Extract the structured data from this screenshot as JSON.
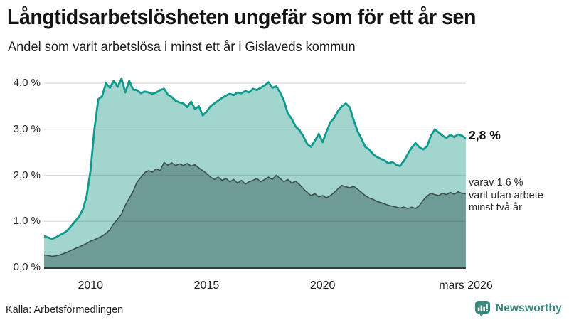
{
  "header": {
    "title": "Långtidsarbetslösheten ungefär som för ett år sen",
    "subtitle": "Andel som varit arbetslösa i minst ett år i Gislaveds kommun"
  },
  "annotations": {
    "primary": "2,8 %",
    "secondary": "varav 1,6 %\nvarit utan arbete\nminst två år"
  },
  "footer": {
    "source": "Källa: Arbetsförmedlingen",
    "brand": "Newsworthy"
  },
  "colors": {
    "series1_line": "#0f9a8e",
    "series1_fill": "#a3d5cf",
    "series2_line": "#3c4f4c",
    "series2_fill": "#6f9b96",
    "gridline": "rgba(60,60,60,0.18)",
    "baseline": "#2f3e3c",
    "brand_teal": "#3a877e"
  },
  "chart_data": {
    "type": "area",
    "title": "Långtidsarbetslösheten ungefär som för ett år sen",
    "subtitle": "Andel som varit arbetslösa i minst ett år i Gislaveds kommun",
    "grid": true,
    "legend_position": "right-annotations",
    "x_start": 2008.0,
    "x_step": 0.16667,
    "x_axis": {
      "min": 2008.0,
      "max": 2026.17,
      "ticks": [
        {
          "value": 2010,
          "label": "2010"
        },
        {
          "value": 2015,
          "label": "2015"
        },
        {
          "value": 2020,
          "label": "2020"
        },
        {
          "value": 2026.17,
          "label": "mars 2026"
        }
      ]
    },
    "y_axis": {
      "min": 0,
      "max": 4.0,
      "unit": "%",
      "gridlines": [
        1,
        2,
        3,
        4
      ],
      "ticks": [
        {
          "value": 0,
          "label": "0,0 %"
        },
        {
          "value": 1,
          "label": "1,0 %"
        },
        {
          "value": 2,
          "label": "2,0 %"
        },
        {
          "value": 3,
          "label": "3,0 %"
        },
        {
          "value": 4,
          "label": "4,0 %"
        }
      ]
    },
    "series": [
      {
        "name": "Andel som varit arbetslösa i minst ett år",
        "latest_label": "2,8 %",
        "latest_value": 2.8,
        "line_color": "#0f9a8e",
        "fill_color": "#a3d5cf",
        "values": [
          0.68,
          0.65,
          0.62,
          0.65,
          0.7,
          0.74,
          0.8,
          0.9,
          1.0,
          1.1,
          1.25,
          1.55,
          2.1,
          3.0,
          3.65,
          3.72,
          4.0,
          3.9,
          4.05,
          3.92,
          4.1,
          3.8,
          4.05,
          3.86,
          3.85,
          3.78,
          3.82,
          3.8,
          3.77,
          3.8,
          3.85,
          3.88,
          3.75,
          3.7,
          3.62,
          3.58,
          3.56,
          3.48,
          3.6,
          3.44,
          3.5,
          3.3,
          3.38,
          3.5,
          3.56,
          3.62,
          3.68,
          3.73,
          3.77,
          3.74,
          3.8,
          3.78,
          3.83,
          3.8,
          3.88,
          3.85,
          3.9,
          3.95,
          4.02,
          3.9,
          3.93,
          3.8,
          3.62,
          3.34,
          3.23,
          3.06,
          2.98,
          2.85,
          2.68,
          2.62,
          2.75,
          2.9,
          2.72,
          2.95,
          3.15,
          3.25,
          3.4,
          3.5,
          3.56,
          3.48,
          3.2,
          2.96,
          2.8,
          2.62,
          2.56,
          2.46,
          2.4,
          2.36,
          2.32,
          2.26,
          2.29,
          2.23,
          2.2,
          2.31,
          2.46,
          2.6,
          2.7,
          2.61,
          2.56,
          2.63,
          2.86,
          3.0,
          2.93,
          2.86,
          2.81,
          2.88,
          2.83,
          2.89,
          2.86,
          2.8
        ]
      },
      {
        "name": "varav varit utan arbete minst två år",
        "latest_label": "varav 1,6 %",
        "latest_value": 1.6,
        "line_color": "#3c4f4c",
        "fill_color": "#6f9b96",
        "values": [
          0.27,
          0.26,
          0.24,
          0.25,
          0.27,
          0.3,
          0.33,
          0.37,
          0.41,
          0.44,
          0.48,
          0.52,
          0.57,
          0.6,
          0.64,
          0.68,
          0.74,
          0.82,
          0.95,
          1.05,
          1.15,
          1.35,
          1.5,
          1.65,
          1.85,
          1.95,
          2.06,
          2.1,
          2.07,
          2.14,
          2.1,
          2.28,
          2.22,
          2.27,
          2.21,
          2.25,
          2.21,
          2.26,
          2.2,
          2.23,
          2.16,
          2.1,
          2.04,
          1.96,
          1.91,
          1.96,
          1.89,
          1.93,
          1.86,
          1.91,
          1.83,
          1.89,
          1.81,
          1.86,
          1.89,
          1.93,
          1.86,
          1.91,
          1.96,
          1.91,
          2.0,
          1.93,
          1.86,
          1.91,
          1.83,
          1.87,
          1.8,
          1.71,
          1.63,
          1.56,
          1.6,
          1.53,
          1.56,
          1.51,
          1.56,
          1.63,
          1.71,
          1.78,
          1.75,
          1.73,
          1.76,
          1.7,
          1.63,
          1.56,
          1.51,
          1.48,
          1.43,
          1.41,
          1.38,
          1.35,
          1.33,
          1.31,
          1.29,
          1.31,
          1.28,
          1.31,
          1.28,
          1.34,
          1.46,
          1.55,
          1.61,
          1.58,
          1.56,
          1.61,
          1.58,
          1.63,
          1.59,
          1.64,
          1.61,
          1.6
        ]
      }
    ]
  }
}
